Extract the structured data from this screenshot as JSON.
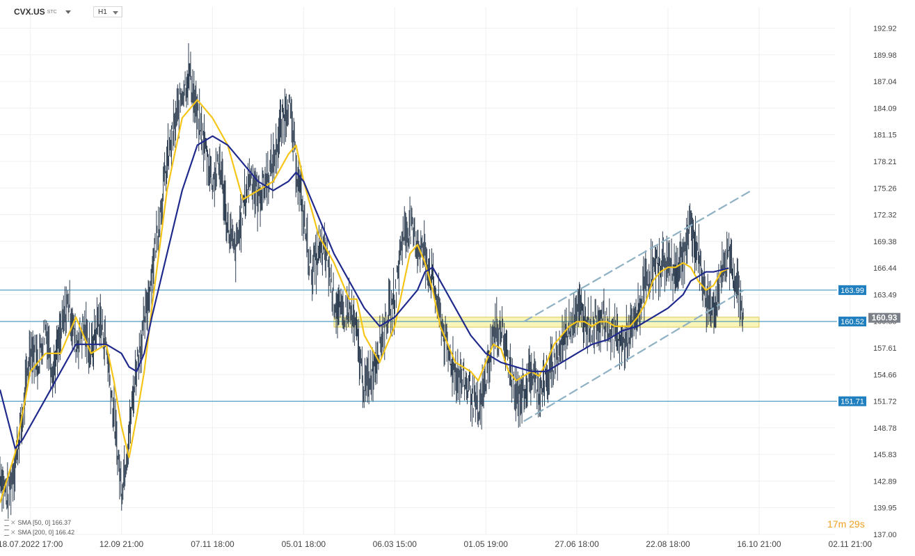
{
  "header": {
    "symbol": "CVX.US",
    "symbol_sub": "STC",
    "timeframe": "H1"
  },
  "legend": [
    {
      "label": "SMA [50, 0] 166.37"
    },
    {
      "label": "SMA [200, 0] 166.42"
    }
  ],
  "timer": {
    "minutes": "17",
    "m": "m",
    "seconds": "29",
    "s": "s"
  },
  "colors": {
    "grid": "#eef0f3",
    "candle": "#2f3f52",
    "sma50": "#f5c518",
    "sma200": "#1f2a8c",
    "hline": "#2a8ab7",
    "channel": "#8fb1c4",
    "zone_fill": "#f9f3b0",
    "zone_stroke": "#d9c64a",
    "badge_blue": "#1f7fbf",
    "badge_gray": "#7b8088"
  },
  "chart_data": {
    "type": "line",
    "title": "CVX.US",
    "ylim": [
      137.0,
      194.5
    ],
    "x_range": [
      0,
      110
    ],
    "y_ticks": [
      "192.92",
      "189.98",
      "187.04",
      "184.09",
      "181.15",
      "178.21",
      "175.26",
      "172.32",
      "169.38",
      "166.44",
      "163.49",
      "160.55",
      "157.61",
      "154.66",
      "151.72",
      "148.78",
      "145.83",
      "142.89",
      "139.95",
      "137.00"
    ],
    "x_ticks": [
      {
        "x": 4,
        "label": "18.07.2022  17:00"
      },
      {
        "x": 16,
        "label": "12.09  21:00"
      },
      {
        "x": 28,
        "label": "07.11  18:00"
      },
      {
        "x": 40,
        "label": "05.01  18:00"
      },
      {
        "x": 52,
        "label": "06.03  15:00"
      },
      {
        "x": 64,
        "label": "01.05  19:00"
      },
      {
        "x": 76,
        "label": "27.06  18:00"
      },
      {
        "x": 88,
        "label": "22.08  18:00"
      },
      {
        "x": 100,
        "label": "16.10  21:00"
      },
      {
        "x": 112,
        "label": "02.11  21:00"
      }
    ],
    "price_path": [
      [
        0,
        144
      ],
      [
        1,
        141
      ],
      [
        2,
        145
      ],
      [
        3,
        150
      ],
      [
        4,
        158
      ],
      [
        5,
        156
      ],
      [
        6,
        160
      ],
      [
        7,
        155
      ],
      [
        8,
        159
      ],
      [
        9,
        163
      ],
      [
        10,
        158
      ],
      [
        11,
        160
      ],
      [
        12,
        157
      ],
      [
        13,
        161
      ],
      [
        14,
        158
      ],
      [
        15,
        150
      ],
      [
        16,
        142
      ],
      [
        17,
        148
      ],
      [
        18,
        156
      ],
      [
        19,
        160
      ],
      [
        20,
        166
      ],
      [
        21,
        172
      ],
      [
        22,
        178
      ],
      [
        23,
        182
      ],
      [
        24,
        186
      ],
      [
        25,
        188
      ],
      [
        26,
        183
      ],
      [
        27,
        180
      ],
      [
        28,
        176
      ],
      [
        29,
        178
      ],
      [
        30,
        171
      ],
      [
        31,
        168
      ],
      [
        32,
        173
      ],
      [
        33,
        177
      ],
      [
        34,
        174
      ],
      [
        35,
        176
      ],
      [
        36,
        178
      ],
      [
        37,
        182
      ],
      [
        38,
        185
      ],
      [
        39,
        178
      ],
      [
        40,
        172
      ],
      [
        41,
        166
      ],
      [
        42,
        168
      ],
      [
        43,
        168
      ],
      [
        44,
        163
      ],
      [
        45,
        161
      ],
      [
        46,
        162
      ],
      [
        47,
        159
      ],
      [
        48,
        153
      ],
      [
        49,
        155
      ],
      [
        50,
        158
      ],
      [
        51,
        161
      ],
      [
        52,
        163
      ],
      [
        53,
        170
      ],
      [
        54,
        171
      ],
      [
        55,
        169
      ],
      [
        56,
        168
      ],
      [
        57,
        165
      ],
      [
        58,
        161
      ],
      [
        59,
        157
      ],
      [
        60,
        155
      ],
      [
        61,
        154
      ],
      [
        62,
        153
      ],
      [
        63,
        150
      ],
      [
        64,
        154
      ],
      [
        65,
        159
      ],
      [
        66,
        160
      ],
      [
        67,
        156
      ],
      [
        68,
        152
      ],
      [
        69,
        153
      ],
      [
        70,
        155
      ],
      [
        71,
        153
      ],
      [
        72,
        154
      ],
      [
        73,
        156
      ],
      [
        74,
        158
      ],
      [
        75,
        160
      ],
      [
        76,
        162
      ],
      [
        77,
        161
      ],
      [
        78,
        160
      ],
      [
        79,
        161
      ],
      [
        80,
        160
      ],
      [
        81,
        159
      ],
      [
        82,
        158
      ],
      [
        83,
        159
      ],
      [
        84,
        161
      ],
      [
        85,
        165
      ],
      [
        86,
        166
      ],
      [
        87,
        167
      ],
      [
        88,
        167
      ],
      [
        89,
        166
      ],
      [
        90,
        168
      ],
      [
        91,
        171
      ],
      [
        92,
        168
      ],
      [
        93,
        163
      ],
      [
        94,
        162
      ],
      [
        95,
        165
      ],
      [
        96,
        168
      ],
      [
        97,
        165
      ],
      [
        98,
        161
      ]
    ],
    "series": [
      {
        "name": "SMA [50, 0] 166.37",
        "values": [
          [
            0,
            140.5
          ],
          [
            2,
            146
          ],
          [
            4,
            155
          ],
          [
            6,
            157
          ],
          [
            8,
            157
          ],
          [
            10,
            161
          ],
          [
            12,
            157
          ],
          [
            14,
            158
          ],
          [
            15,
            154
          ],
          [
            16,
            149
          ],
          [
            17,
            145.5
          ],
          [
            18,
            150
          ],
          [
            19,
            155
          ],
          [
            20,
            162
          ],
          [
            22,
            175
          ],
          [
            24,
            183
          ],
          [
            26,
            185
          ],
          [
            28,
            183
          ],
          [
            30,
            180
          ],
          [
            32,
            174
          ],
          [
            34,
            175
          ],
          [
            36,
            176
          ],
          [
            38,
            179
          ],
          [
            39,
            180
          ],
          [
            40,
            176
          ],
          [
            42,
            170
          ],
          [
            44,
            167
          ],
          [
            46,
            163
          ],
          [
            47,
            163
          ],
          [
            48,
            159
          ],
          [
            50,
            156
          ],
          [
            52,
            160
          ],
          [
            53,
            164
          ],
          [
            54,
            168
          ],
          [
            55,
            169
          ],
          [
            56,
            167
          ],
          [
            57,
            164
          ],
          [
            58,
            160
          ],
          [
            59,
            158
          ],
          [
            60,
            156
          ],
          [
            61,
            155.5
          ],
          [
            62,
            155
          ],
          [
            63,
            154
          ],
          [
            64,
            156
          ],
          [
            65,
            158
          ],
          [
            66,
            157.5
          ],
          [
            67,
            155
          ],
          [
            68,
            154
          ],
          [
            69,
            154.5
          ],
          [
            70,
            155
          ],
          [
            71,
            154.5
          ],
          [
            72,
            156
          ],
          [
            73,
            158
          ],
          [
            74,
            159
          ],
          [
            75,
            160
          ],
          [
            76,
            160.5
          ],
          [
            77,
            160.5
          ],
          [
            78,
            160
          ],
          [
            79,
            160.5
          ],
          [
            80,
            160.5
          ],
          [
            81,
            160
          ],
          [
            82,
            160
          ],
          [
            83,
            160
          ],
          [
            84,
            161
          ],
          [
            85,
            162.5
          ],
          [
            86,
            165
          ],
          [
            87,
            166
          ],
          [
            88,
            166.5
          ],
          [
            89,
            166.5
          ],
          [
            90,
            167
          ],
          [
            91,
            166.5
          ],
          [
            92,
            165
          ],
          [
            93,
            164
          ],
          [
            94,
            164.5
          ],
          [
            95,
            166
          ],
          [
            96,
            166.4
          ]
        ]
      },
      {
        "name": "SMA [200, 0] 166.42",
        "values": [
          [
            0,
            153
          ],
          [
            2,
            146.5
          ],
          [
            3,
            147.5
          ],
          [
            4,
            149
          ],
          [
            6,
            152
          ],
          [
            8,
            155
          ],
          [
            10,
            158
          ],
          [
            12,
            158
          ],
          [
            14,
            158
          ],
          [
            16,
            157
          ],
          [
            17,
            155.5
          ],
          [
            18,
            155
          ],
          [
            19,
            157
          ],
          [
            20,
            161
          ],
          [
            22,
            168
          ],
          [
            24,
            175
          ],
          [
            26,
            180
          ],
          [
            28,
            181
          ],
          [
            30,
            180
          ],
          [
            32,
            178
          ],
          [
            34,
            176
          ],
          [
            36,
            175
          ],
          [
            38,
            176
          ],
          [
            39,
            177
          ],
          [
            40,
            176
          ],
          [
            42,
            172
          ],
          [
            44,
            168
          ],
          [
            46,
            165
          ],
          [
            48,
            162
          ],
          [
            50,
            160
          ],
          [
            52,
            161
          ],
          [
            54,
            163
          ],
          [
            55,
            164
          ],
          [
            56,
            166
          ],
          [
            57,
            166.5
          ],
          [
            58,
            165
          ],
          [
            60,
            162
          ],
          [
            62,
            159
          ],
          [
            64,
            157
          ],
          [
            66,
            156
          ],
          [
            68,
            155.5
          ],
          [
            70,
            155
          ],
          [
            72,
            155
          ],
          [
            74,
            156
          ],
          [
            76,
            157
          ],
          [
            78,
            158
          ],
          [
            80,
            158.5
          ],
          [
            82,
            159.5
          ],
          [
            84,
            160
          ],
          [
            86,
            161
          ],
          [
            88,
            162
          ],
          [
            90,
            163.5
          ],
          [
            91,
            165
          ],
          [
            92,
            165.5
          ],
          [
            93,
            166
          ],
          [
            94,
            166
          ],
          [
            95,
            166.2
          ],
          [
            96,
            166.42
          ]
        ]
      }
    ],
    "horizontal_levels": [
      {
        "price": 163.99,
        "label": "163.99",
        "from_x": 0
      },
      {
        "price": 160.52,
        "label": "160.52",
        "from_x": 0
      },
      {
        "price": 151.71,
        "label": "151.71",
        "from_x": 0
      },
      {
        "price": 160.93,
        "label": "160.93",
        "from_x": 0,
        "current": true
      }
    ],
    "zone": {
      "x0": 44,
      "x1": 100,
      "y0": 159.9,
      "y1": 161.0
    },
    "channel": {
      "upper": [
        [
          69,
          160.5
        ],
        [
          99,
          175.0
        ]
      ],
      "lower": [
        [
          69,
          149.5
        ],
        [
          98,
          164.0
        ]
      ],
      "dashed": true
    },
    "grid": true
  }
}
